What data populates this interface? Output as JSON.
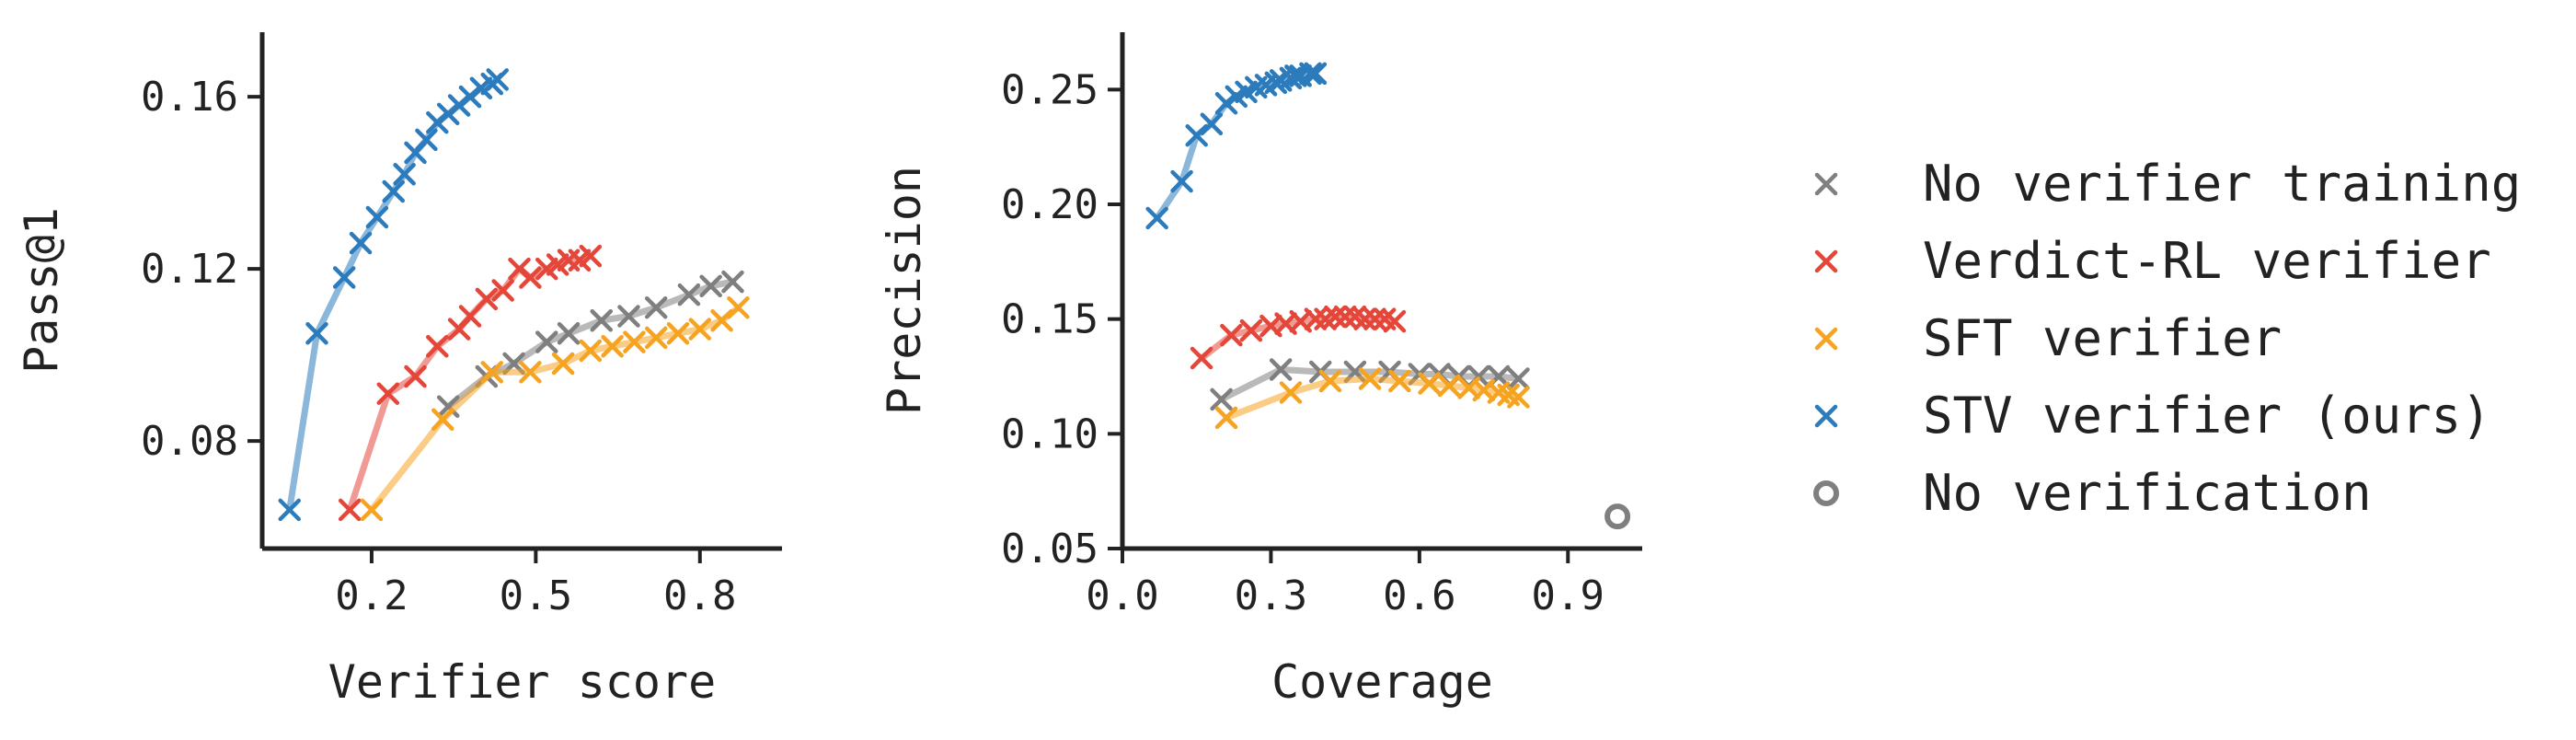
{
  "chart_data": [
    {
      "type": "line",
      "xlabel": "Verifier score",
      "ylabel": "Pass@1",
      "xlim": [
        0.0,
        0.95
      ],
      "ylim": [
        0.055,
        0.175
      ],
      "xticks": [
        0.2,
        0.5,
        0.8
      ],
      "xtick_labels": [
        "0.2",
        "0.5",
        "0.8"
      ],
      "yticks": [
        0.08,
        0.12,
        0.16
      ],
      "ytick_labels": [
        "0.08",
        "0.12",
        "0.16"
      ],
      "grid": false,
      "series": [
        {
          "name": "No verifier training",
          "color": "#7f7f7f",
          "x": [
            0.34,
            0.41,
            0.46,
            0.52,
            0.56,
            0.62,
            0.67,
            0.72,
            0.78,
            0.82,
            0.86
          ],
          "y": [
            0.088,
            0.095,
            0.098,
            0.103,
            0.105,
            0.108,
            0.109,
            0.111,
            0.114,
            0.116,
            0.117
          ]
        },
        {
          "name": "Verdict-RL verifier",
          "color": "#e5463a",
          "x": [
            0.16,
            0.23,
            0.28,
            0.32,
            0.36,
            0.38,
            0.41,
            0.44,
            0.47,
            0.49,
            0.52,
            0.54,
            0.56,
            0.58,
            0.6
          ],
          "y": [
            0.064,
            0.091,
            0.095,
            0.102,
            0.106,
            0.109,
            0.113,
            0.115,
            0.12,
            0.118,
            0.12,
            0.121,
            0.122,
            0.122,
            0.123
          ]
        },
        {
          "name": "SFT verifier",
          "color": "#f5a320",
          "x": [
            0.2,
            0.33,
            0.42,
            0.49,
            0.55,
            0.6,
            0.64,
            0.68,
            0.72,
            0.76,
            0.8,
            0.84,
            0.87
          ],
          "y": [
            0.064,
            0.085,
            0.096,
            0.096,
            0.098,
            0.101,
            0.102,
            0.103,
            0.104,
            0.105,
            0.106,
            0.108,
            0.111
          ]
        },
        {
          "name": "STV verifier (ours)",
          "color": "#2b7bbd",
          "x": [
            0.05,
            0.1,
            0.15,
            0.18,
            0.21,
            0.24,
            0.26,
            0.28,
            0.3,
            0.32,
            0.34,
            0.36,
            0.38,
            0.4,
            0.42,
            0.43
          ],
          "y": [
            0.064,
            0.105,
            0.118,
            0.126,
            0.132,
            0.138,
            0.142,
            0.147,
            0.15,
            0.154,
            0.156,
            0.158,
            0.16,
            0.162,
            0.163,
            0.164
          ]
        }
      ]
    },
    {
      "type": "line",
      "xlabel": "Coverage",
      "ylabel": "Precision",
      "xlim": [
        0.0,
        1.05
      ],
      "ylim": [
        0.05,
        0.275
      ],
      "xticks": [
        0.0,
        0.3,
        0.6,
        0.9
      ],
      "xtick_labels": [
        "0.0",
        "0.3",
        "0.6",
        "0.9"
      ],
      "yticks": [
        0.05,
        0.1,
        0.15,
        0.2,
        0.25
      ],
      "ytick_labels": [
        "0.05",
        "0.10",
        "0.15",
        "0.20",
        "0.25"
      ],
      "grid": false,
      "series": [
        {
          "name": "No verifier training",
          "color": "#7f7f7f",
          "x": [
            0.2,
            0.32,
            0.4,
            0.47,
            0.54,
            0.6,
            0.64,
            0.68,
            0.72,
            0.76,
            0.8
          ],
          "y": [
            0.115,
            0.128,
            0.127,
            0.127,
            0.127,
            0.126,
            0.126,
            0.125,
            0.125,
            0.125,
            0.124
          ]
        },
        {
          "name": "Verdict-RL verifier",
          "color": "#e5463a",
          "x": [
            0.16,
            0.22,
            0.26,
            0.3,
            0.33,
            0.36,
            0.39,
            0.41,
            0.43,
            0.45,
            0.47,
            0.49,
            0.51,
            0.53,
            0.55
          ],
          "y": [
            0.133,
            0.143,
            0.145,
            0.147,
            0.148,
            0.149,
            0.15,
            0.15,
            0.151,
            0.151,
            0.151,
            0.15,
            0.15,
            0.15,
            0.149
          ]
        },
        {
          "name": "SFT verifier",
          "color": "#f5a320",
          "x": [
            0.21,
            0.34,
            0.42,
            0.5,
            0.56,
            0.62,
            0.66,
            0.7,
            0.73,
            0.76,
            0.78,
            0.8
          ],
          "y": [
            0.107,
            0.118,
            0.123,
            0.124,
            0.123,
            0.122,
            0.121,
            0.12,
            0.119,
            0.118,
            0.117,
            0.116
          ]
        },
        {
          "name": "STV verifier (ours)",
          "color": "#2b7bbd",
          "x": [
            0.07,
            0.12,
            0.15,
            0.18,
            0.21,
            0.23,
            0.25,
            0.27,
            0.29,
            0.31,
            0.32,
            0.34,
            0.35,
            0.36,
            0.38,
            0.39
          ],
          "y": [
            0.194,
            0.21,
            0.23,
            0.235,
            0.244,
            0.247,
            0.249,
            0.251,
            0.252,
            0.253,
            0.254,
            0.255,
            0.256,
            0.256,
            0.257,
            0.257
          ]
        }
      ],
      "extra_points": [
        {
          "name": "No verification",
          "color": "#7f7f7f",
          "x": 1.0,
          "y": 0.064
        }
      ]
    }
  ],
  "legend": {
    "placement": "right",
    "items": [
      {
        "label": "No verifier training",
        "color": "#7f7f7f",
        "marker": "x"
      },
      {
        "label": "Verdict-RL verifier",
        "color": "#e5463a",
        "marker": "x"
      },
      {
        "label": "SFT verifier",
        "color": "#f5a320",
        "marker": "x"
      },
      {
        "label": "STV verifier (ours)",
        "color": "#2b7bbd",
        "marker": "x"
      },
      {
        "label": "No verification",
        "color": "#7f7f7f",
        "marker": "circle"
      }
    ]
  }
}
